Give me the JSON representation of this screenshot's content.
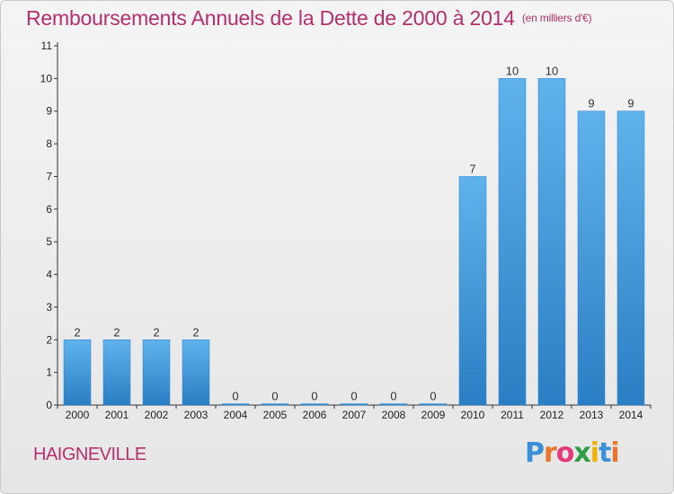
{
  "title": "Remboursements Annuels de la Dette de 2000 à 2014",
  "unit": "(en milliers d'€)",
  "commune": "HAIGNEVILLE",
  "logo": "Proxiti",
  "colors": {
    "title": "#b3306a",
    "bar_top": "#5fb3ec",
    "bar_bottom": "#2a7fc4"
  },
  "chart_data": {
    "type": "bar",
    "title": "Remboursements Annuels de la Dette de 2000 à 2014",
    "subtitle": "(en milliers d'€)",
    "xlabel": "",
    "ylabel": "",
    "categories": [
      "2000",
      "2001",
      "2002",
      "2003",
      "2004",
      "2005",
      "2006",
      "2007",
      "2008",
      "2009",
      "2010",
      "2011",
      "2012",
      "2013",
      "2014"
    ],
    "values": [
      2,
      2,
      2,
      2,
      0,
      0,
      0,
      0,
      0,
      0,
      7,
      10,
      10,
      9,
      9
    ],
    "data_labels": [
      "2",
      "2",
      "2",
      "2",
      "0",
      "0",
      "0",
      "0",
      "0",
      "0",
      "7",
      "10",
      "10",
      "9",
      "9"
    ],
    "y_ticks": [
      "0",
      "1",
      "2",
      "3",
      "4",
      "5",
      "6",
      "7",
      "8",
      "9",
      "10",
      "11"
    ],
    "ylim": [
      0,
      11
    ],
    "grid": false,
    "legend": "none"
  }
}
